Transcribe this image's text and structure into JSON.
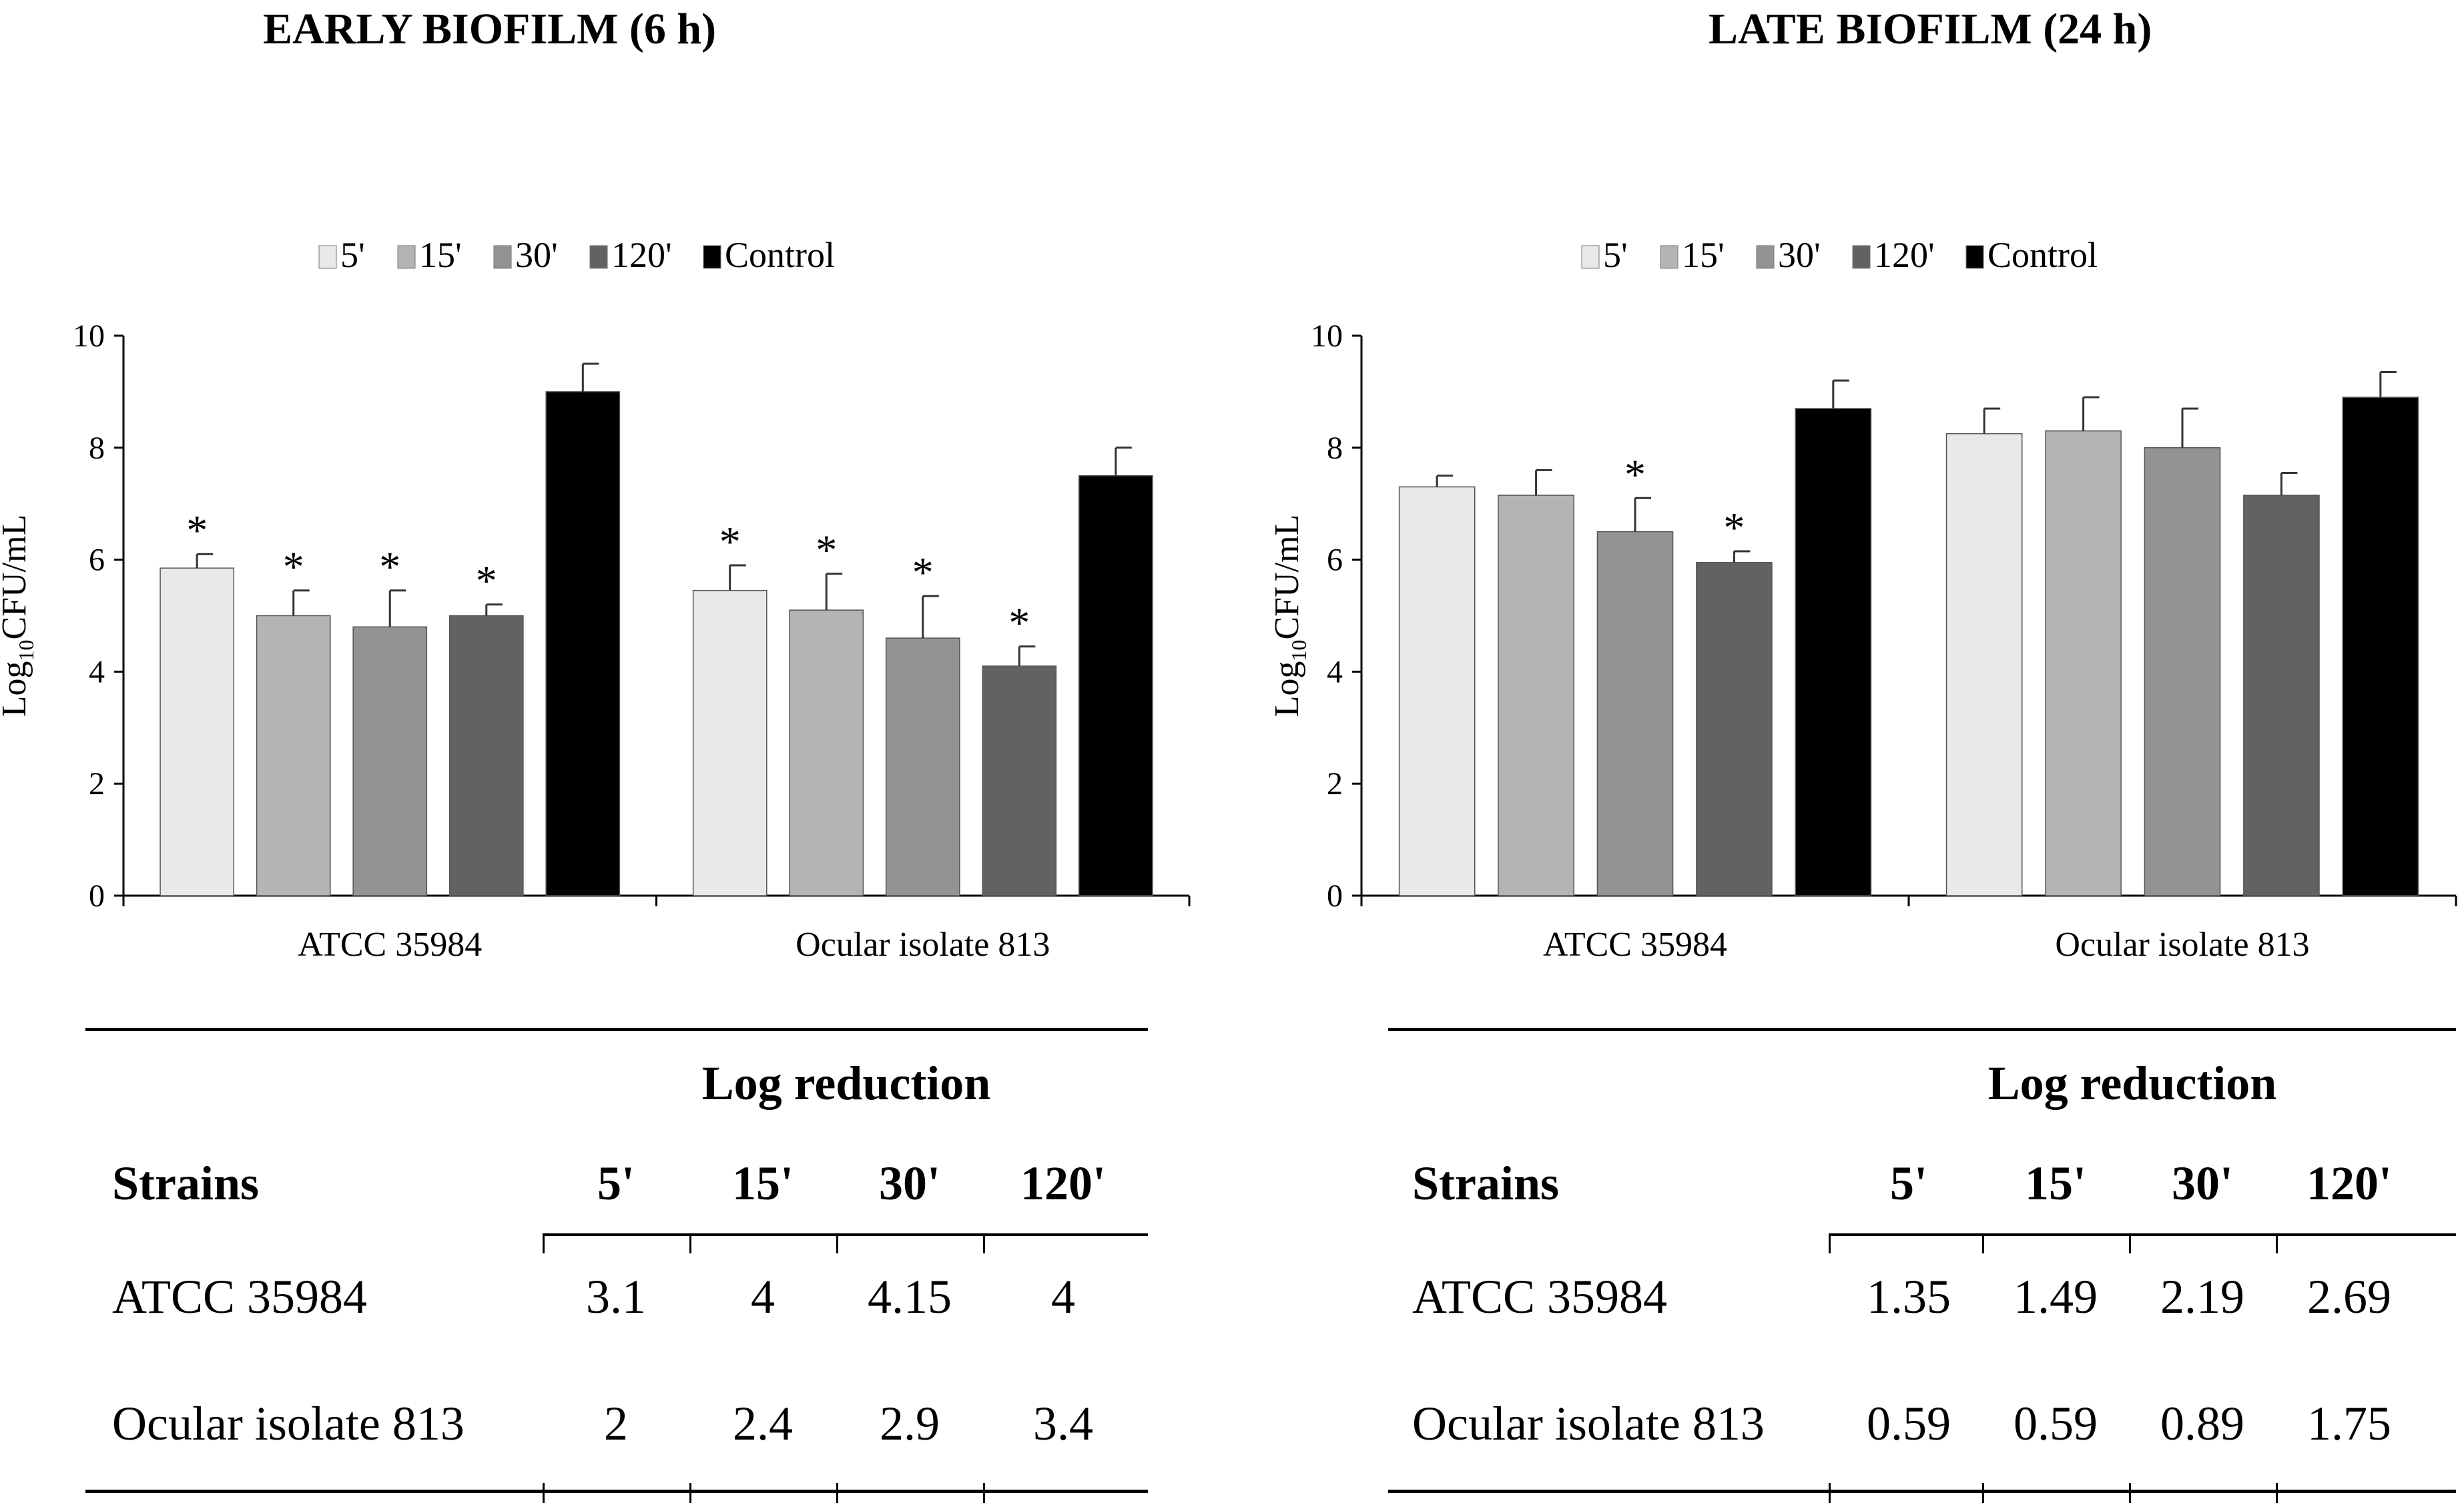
{
  "figure_panels": [
    {
      "id": "early",
      "title": "EARLY BIOFILM (6 h)",
      "table": {
        "group_header": "Log reduction",
        "columns": [
          "Strains",
          "5'",
          "15'",
          "30'",
          "120'"
        ],
        "rows": [
          {
            "strain": "ATCC 35984",
            "values": [
              "3.1",
              "4",
              "4.15",
              "4"
            ]
          },
          {
            "strain": "Ocular isolate 813",
            "values": [
              "2",
              "2.4",
              "2.9",
              "3.4"
            ]
          }
        ]
      }
    },
    {
      "id": "late",
      "title": "LATE BIOFILM (24 h)",
      "table": {
        "group_header": "Log reduction",
        "columns": [
          "Strains",
          "5'",
          "15'",
          "30'",
          "120'"
        ],
        "rows": [
          {
            "strain": "ATCC 35984",
            "values": [
              "1.35",
              "1.49",
              "2.19",
              "2.69"
            ]
          },
          {
            "strain": "Ocular isolate 813",
            "values": [
              "0.59",
              "0.59",
              "0.89",
              "1.75"
            ]
          }
        ]
      }
    }
  ],
  "chart_data": [
    {
      "type": "bar",
      "title": "EARLY BIOFILM (6 h)",
      "categories": [
        "ATCC 35984",
        "Ocular isolate 813"
      ],
      "ylabel_main": "Log",
      "ylabel_sub": "10",
      "ylabel_rest": "CFU/mL",
      "xlabel": "",
      "ylim": [
        0,
        10
      ],
      "yticks": [
        "0",
        "2",
        "4",
        "6",
        "8",
        "10"
      ],
      "legend_position": "top",
      "series": [
        {
          "name": "5'",
          "color": "#e9e9e9",
          "values": [
            5.85,
            5.45
          ],
          "errors": [
            0.25,
            0.45
          ],
          "significant": [
            true,
            true
          ]
        },
        {
          "name": "15'",
          "color": "#b4b4b4",
          "values": [
            5.0,
            5.1
          ],
          "errors": [
            0.45,
            0.65
          ],
          "significant": [
            true,
            true
          ]
        },
        {
          "name": "30'",
          "color": "#939393",
          "values": [
            4.8,
            4.6
          ],
          "errors": [
            0.65,
            0.75
          ],
          "significant": [
            true,
            true
          ]
        },
        {
          "name": "120'",
          "color": "#626262",
          "values": [
            5.0,
            4.1
          ],
          "errors": [
            0.2,
            0.35
          ],
          "significant": [
            true,
            true
          ]
        },
        {
          "name": "Control",
          "color": "#000000",
          "values": [
            9.0,
            7.5
          ],
          "errors": [
            0.5,
            0.5
          ],
          "significant": [
            false,
            false
          ]
        }
      ],
      "significance_marker": "*"
    },
    {
      "type": "bar",
      "title": "LATE BIOFILM (24 h)",
      "categories": [
        "ATCC 35984",
        "Ocular isolate 813"
      ],
      "ylabel_main": "Log",
      "ylabel_sub": "10",
      "ylabel_rest": "CFU/mL",
      "xlabel": "",
      "ylim": [
        0,
        10
      ],
      "yticks": [
        "0",
        "2",
        "4",
        "6",
        "8",
        "10"
      ],
      "legend_position": "top",
      "series": [
        {
          "name": "5'",
          "color": "#e9e9e9",
          "values": [
            7.3,
            8.25
          ],
          "errors": [
            0.2,
            0.45
          ],
          "significant": [
            false,
            false
          ]
        },
        {
          "name": "15'",
          "color": "#b4b4b4",
          "values": [
            7.15,
            8.3
          ],
          "errors": [
            0.45,
            0.6
          ],
          "significant": [
            false,
            false
          ]
        },
        {
          "name": "30'",
          "color": "#939393",
          "values": [
            6.5,
            8.0
          ],
          "errors": [
            0.6,
            0.7
          ],
          "significant": [
            true,
            false
          ]
        },
        {
          "name": "120'",
          "color": "#626262",
          "values": [
            5.95,
            7.15
          ],
          "errors": [
            0.2,
            0.4
          ],
          "significant": [
            true,
            false
          ]
        },
        {
          "name": "Control",
          "color": "#000000",
          "values": [
            8.7,
            8.9
          ],
          "errors": [
            0.5,
            0.45
          ],
          "significant": [
            false,
            false
          ]
        }
      ],
      "significance_marker": "*"
    }
  ]
}
